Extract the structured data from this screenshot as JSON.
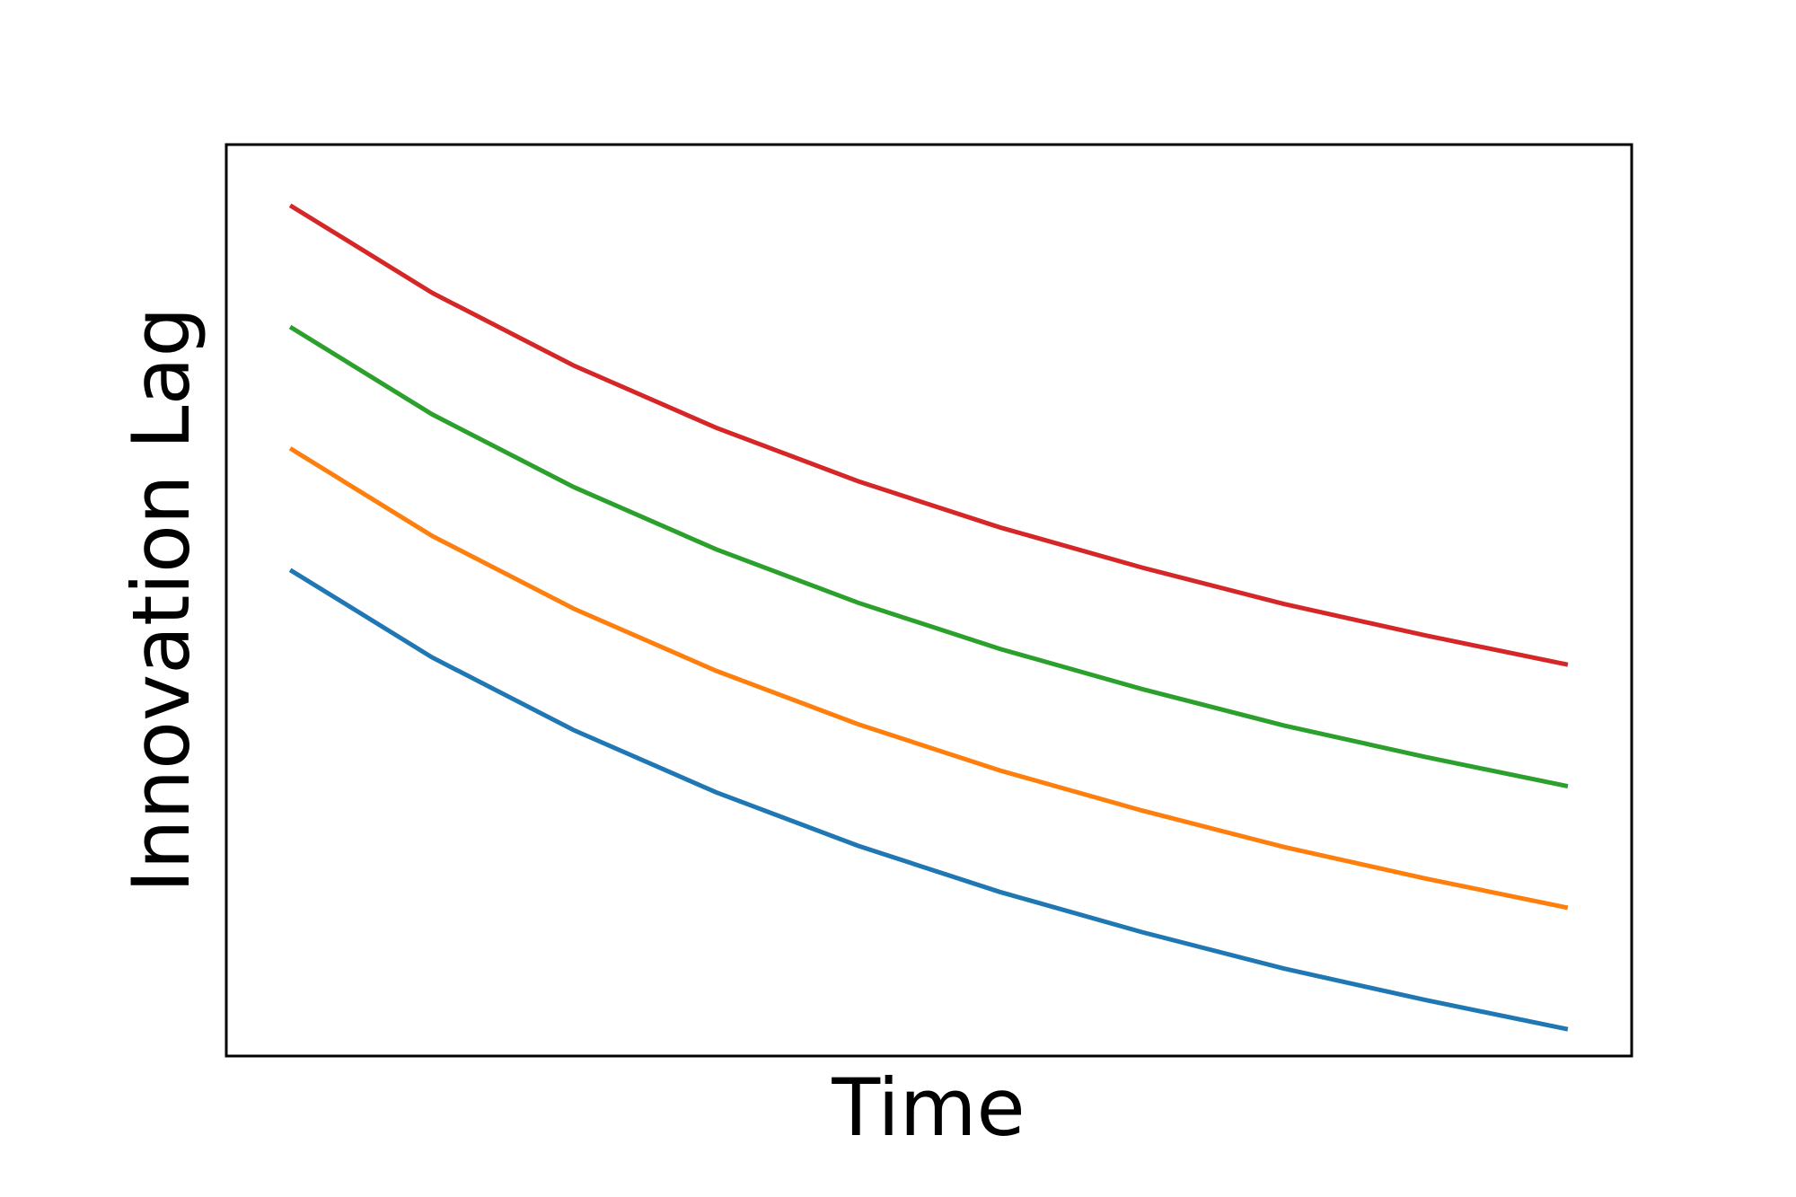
{
  "chart_data": {
    "type": "line",
    "title": "",
    "xlabel": "Time",
    "ylabel": "Innovation Lag",
    "x_ticks_visible": false,
    "y_ticks_visible": false,
    "grid": false,
    "legend": "none",
    "xlim": [
      0.55,
      10.45
    ],
    "ylim": [
      6.0,
      13.5
    ],
    "x": [
      1,
      2,
      3,
      4,
      5,
      6,
      7,
      8,
      9,
      10
    ],
    "series": [
      {
        "color": "#1f77b4",
        "values": [
          10.0,
          9.28,
          8.68,
          8.17,
          7.73,
          7.35,
          7.02,
          6.72,
          6.46,
          6.22
        ]
      },
      {
        "color": "#ff7f0e",
        "values": [
          11.0,
          10.28,
          9.68,
          9.17,
          8.73,
          8.35,
          8.02,
          7.72,
          7.46,
          7.22
        ]
      },
      {
        "color": "#2ca02c",
        "values": [
          12.0,
          11.28,
          10.68,
          10.17,
          9.73,
          9.35,
          9.02,
          8.72,
          8.46,
          8.22
        ]
      },
      {
        "color": "#d62728",
        "values": [
          13.0,
          12.28,
          11.68,
          11.17,
          10.73,
          10.35,
          10.02,
          9.72,
          9.46,
          9.22
        ]
      }
    ]
  }
}
